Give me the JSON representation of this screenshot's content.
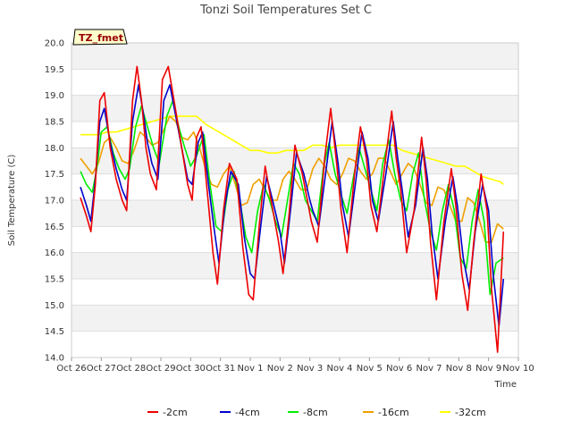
{
  "chart_data": {
    "type": "line",
    "title": "Tonzi Soil Temperatures Set C",
    "xlabel": "Time",
    "ylabel": "Soil Temperature (C)",
    "site_tag": "TZ_fmet",
    "ylim": [
      14.0,
      20.0
    ],
    "yticks": [
      "14.0",
      "14.5",
      "15.0",
      "15.5",
      "16.0",
      "16.5",
      "17.0",
      "17.5",
      "18.0",
      "18.5",
      "19.0",
      "19.5",
      "20.0"
    ],
    "xlim": [
      0,
      15
    ],
    "xticks": [
      "Oct 26",
      "Oct 27",
      "Oct 28",
      "Oct 29",
      "Oct 30",
      "Oct 31",
      "Nov 1",
      "Nov 2",
      "Nov 3",
      "Nov 4",
      "Nov 5",
      "Nov 6",
      "Nov 7",
      "Nov 8",
      "Nov 9",
      "Nov 10"
    ],
    "grid": true,
    "legend_position": "bottom",
    "series": [
      {
        "name": "-2cm",
        "color": "#ee0000",
        "x": [
          0.3,
          0.5,
          0.65,
          0.8,
          0.95,
          1.1,
          1.3,
          1.5,
          1.7,
          1.85,
          2.05,
          2.2,
          2.35,
          2.5,
          2.65,
          2.85,
          3.05,
          3.25,
          3.5,
          3.7,
          3.9,
          4.05,
          4.2,
          4.35,
          4.55,
          4.75,
          4.9,
          5.1,
          5.3,
          5.55,
          5.75,
          5.95,
          6.1,
          6.3,
          6.5,
          6.7,
          6.95,
          7.1,
          7.3,
          7.5,
          7.75,
          7.95,
          8.05,
          8.25,
          8.5,
          8.7,
          8.9,
          9.05,
          9.25,
          9.5,
          9.7,
          9.9,
          10.05,
          10.25,
          10.5,
          10.75,
          10.9,
          11.05,
          11.25,
          11.5,
          11.75,
          11.9,
          12.05,
          12.25,
          12.5,
          12.75,
          12.9,
          13.1,
          13.3,
          13.5,
          13.75,
          13.95,
          14.1,
          14.3,
          14.5
        ],
        "y": [
          17.05,
          16.7,
          16.4,
          17.3,
          18.9,
          19.05,
          18.0,
          17.4,
          17.0,
          16.8,
          18.9,
          19.55,
          18.9,
          18.0,
          17.5,
          17.2,
          19.3,
          19.55,
          18.7,
          18.0,
          17.3,
          17.0,
          18.2,
          18.4,
          17.2,
          16.0,
          15.4,
          16.8,
          17.7,
          17.4,
          16.1,
          15.2,
          15.1,
          16.5,
          17.65,
          17.0,
          16.2,
          15.6,
          16.7,
          18.05,
          17.5,
          16.9,
          16.6,
          16.2,
          17.8,
          18.75,
          17.7,
          16.8,
          16.0,
          17.5,
          18.4,
          17.8,
          16.9,
          16.4,
          17.6,
          18.7,
          17.8,
          17.2,
          16.0,
          16.8,
          18.2,
          17.4,
          16.2,
          15.1,
          16.6,
          17.6,
          16.9,
          15.6,
          14.9,
          16.2,
          17.5,
          16.8,
          15.3,
          14.1,
          16.4
        ]
      },
      {
        "name": "-4cm",
        "color": "#0000cc",
        "x": [
          0.3,
          0.5,
          0.65,
          0.8,
          0.95,
          1.1,
          1.3,
          1.5,
          1.7,
          1.85,
          2.05,
          2.25,
          2.4,
          2.55,
          2.7,
          2.9,
          3.1,
          3.3,
          3.5,
          3.7,
          3.9,
          4.05,
          4.25,
          4.4,
          4.6,
          4.8,
          4.95,
          5.15,
          5.35,
          5.6,
          5.8,
          6.0,
          6.15,
          6.35,
          6.55,
          6.75,
          7.0,
          7.15,
          7.35,
          7.55,
          7.8,
          8.0,
          8.1,
          8.3,
          8.55,
          8.75,
          8.95,
          9.1,
          9.3,
          9.55,
          9.75,
          9.95,
          10.1,
          10.3,
          10.55,
          10.8,
          10.95,
          11.1,
          11.3,
          11.55,
          11.8,
          11.95,
          12.1,
          12.3,
          12.55,
          12.8,
          12.95,
          13.15,
          13.35,
          13.55,
          13.8,
          14.0,
          14.15,
          14.35,
          14.5
        ],
        "y": [
          17.25,
          16.9,
          16.6,
          17.4,
          18.5,
          18.75,
          18.1,
          17.6,
          17.2,
          17.0,
          18.5,
          19.2,
          18.7,
          18.1,
          17.7,
          17.4,
          18.9,
          19.2,
          18.6,
          18.0,
          17.4,
          17.3,
          18.1,
          18.3,
          17.3,
          16.4,
          15.8,
          16.9,
          17.55,
          17.3,
          16.3,
          15.6,
          15.5,
          16.5,
          17.45,
          17.0,
          16.4,
          15.8,
          16.8,
          17.9,
          17.5,
          17.0,
          16.8,
          16.5,
          17.6,
          18.5,
          17.7,
          16.9,
          16.3,
          17.4,
          18.3,
          17.8,
          17.0,
          16.6,
          17.5,
          18.5,
          17.8,
          17.2,
          16.3,
          16.9,
          18.0,
          17.4,
          16.4,
          15.5,
          16.6,
          17.45,
          16.9,
          15.9,
          15.3,
          16.4,
          17.3,
          16.8,
          15.6,
          14.6,
          15.5
        ]
      },
      {
        "name": "-8cm",
        "color": "#00ee00",
        "x": [
          0.3,
          0.5,
          0.7,
          0.85,
          1.0,
          1.2,
          1.4,
          1.6,
          1.8,
          1.95,
          2.15,
          2.35,
          2.55,
          2.75,
          2.95,
          3.2,
          3.4,
          3.6,
          3.8,
          4.0,
          4.2,
          4.45,
          4.65,
          4.85,
          5.05,
          5.25,
          5.45,
          5.65,
          5.85,
          6.05,
          6.25,
          6.45,
          6.65,
          6.85,
          7.05,
          7.25,
          7.45,
          7.65,
          7.85,
          8.05,
          8.25,
          8.45,
          8.65,
          8.85,
          9.05,
          9.25,
          9.45,
          9.65,
          9.85,
          10.05,
          10.25,
          10.45,
          10.65,
          10.85,
          11.05,
          11.25,
          11.45,
          11.65,
          11.85,
          12.05,
          12.25,
          12.45,
          12.65,
          12.85,
          13.05,
          13.25,
          13.45,
          13.65,
          13.85,
          14.05,
          14.25,
          14.5
        ],
        "y": [
          17.55,
          17.3,
          17.15,
          17.6,
          18.3,
          18.4,
          17.9,
          17.6,
          17.4,
          17.6,
          18.4,
          18.8,
          18.4,
          18.0,
          17.7,
          18.6,
          18.9,
          18.4,
          18.0,
          17.65,
          17.85,
          18.25,
          17.3,
          16.5,
          16.4,
          17.2,
          17.55,
          17.0,
          16.3,
          16.0,
          16.8,
          17.3,
          17.0,
          16.6,
          16.3,
          17.0,
          17.7,
          17.5,
          17.0,
          16.8,
          16.6,
          17.6,
          18.1,
          17.5,
          17.1,
          16.75,
          17.4,
          18.0,
          17.6,
          17.2,
          16.8,
          17.7,
          18.15,
          17.5,
          17.0,
          16.8,
          17.5,
          17.9,
          17.0,
          16.4,
          16.05,
          16.8,
          17.3,
          16.8,
          15.9,
          15.7,
          16.6,
          17.2,
          16.6,
          15.2,
          15.8,
          15.9
        ]
      },
      {
        "name": "-16cm",
        "color": "#f0a000",
        "x": [
          0.3,
          0.5,
          0.7,
          0.9,
          1.1,
          1.3,
          1.5,
          1.7,
          1.9,
          2.1,
          2.3,
          2.5,
          2.7,
          2.9,
          3.1,
          3.3,
          3.5,
          3.7,
          3.9,
          4.1,
          4.3,
          4.5,
          4.7,
          4.9,
          5.1,
          5.3,
          5.5,
          5.7,
          5.9,
          6.1,
          6.3,
          6.5,
          6.7,
          6.9,
          7.1,
          7.3,
          7.5,
          7.7,
          7.9,
          8.1,
          8.3,
          8.5,
          8.7,
          8.9,
          9.1,
          9.3,
          9.5,
          9.7,
          9.9,
          10.1,
          10.3,
          10.5,
          10.7,
          10.9,
          11.1,
          11.3,
          11.5,
          11.7,
          11.9,
          12.1,
          12.3,
          12.5,
          12.7,
          12.9,
          13.1,
          13.3,
          13.5,
          13.7,
          13.9,
          14.1,
          14.3,
          14.5
        ],
        "y": [
          17.8,
          17.65,
          17.5,
          17.7,
          18.1,
          18.2,
          18.0,
          17.75,
          17.7,
          17.95,
          18.3,
          18.2,
          18.05,
          18.1,
          18.35,
          18.6,
          18.5,
          18.2,
          18.15,
          18.3,
          18.0,
          17.6,
          17.3,
          17.25,
          17.5,
          17.65,
          17.3,
          16.9,
          16.95,
          17.3,
          17.4,
          17.2,
          17.0,
          17.0,
          17.4,
          17.55,
          17.4,
          17.2,
          17.2,
          17.6,
          17.8,
          17.65,
          17.4,
          17.3,
          17.5,
          17.8,
          17.75,
          17.55,
          17.4,
          17.5,
          17.8,
          17.8,
          17.55,
          17.3,
          17.5,
          17.7,
          17.6,
          17.3,
          16.95,
          16.9,
          17.25,
          17.2,
          16.9,
          16.6,
          16.6,
          17.05,
          16.95,
          16.6,
          16.2,
          16.2,
          16.55,
          16.45
        ]
      },
      {
        "name": "-32cm",
        "color": "#ffff00",
        "x": [
          0.3,
          0.6,
          0.9,
          1.2,
          1.5,
          1.8,
          2.1,
          2.4,
          2.7,
          3.0,
          3.3,
          3.6,
          3.9,
          4.2,
          4.5,
          4.8,
          5.1,
          5.4,
          5.7,
          6.0,
          6.3,
          6.6,
          6.9,
          7.2,
          7.5,
          7.8,
          8.1,
          8.4,
          8.7,
          9.0,
          9.3,
          9.6,
          9.9,
          10.2,
          10.5,
          10.8,
          11.1,
          11.4,
          11.7,
          12.0,
          12.3,
          12.6,
          12.9,
          13.2,
          13.5,
          13.8,
          14.1,
          14.4,
          14.5
        ],
        "y": [
          18.25,
          18.25,
          18.25,
          18.3,
          18.3,
          18.35,
          18.4,
          18.45,
          18.5,
          18.55,
          18.6,
          18.6,
          18.6,
          18.6,
          18.45,
          18.35,
          18.25,
          18.15,
          18.05,
          17.95,
          17.95,
          17.9,
          17.9,
          17.95,
          17.95,
          17.95,
          18.05,
          18.05,
          18.0,
          18.05,
          18.05,
          18.05,
          18.05,
          18.05,
          18.05,
          18.05,
          17.95,
          17.9,
          17.85,
          17.8,
          17.75,
          17.7,
          17.65,
          17.65,
          17.55,
          17.45,
          17.4,
          17.35,
          17.3
        ]
      }
    ]
  }
}
